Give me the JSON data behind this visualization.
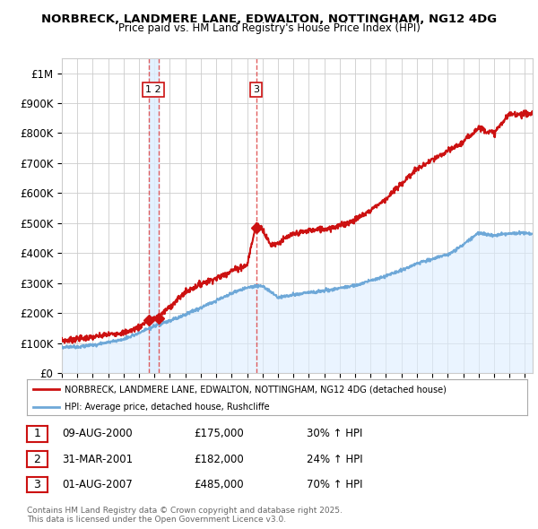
{
  "title": "NORBRECK, LANDMERE LANE, EDWALTON, NOTTINGHAM, NG12 4DG",
  "subtitle": "Price paid vs. HM Land Registry's House Price Index (HPI)",
  "hpi_color": "#6ea8d8",
  "hpi_fill_color": "#ddeeff",
  "price_color": "#cc1111",
  "vline_color": "#dd4444",
  "vline_band_color": "#ddeeff",
  "background_color": "#ffffff",
  "grid_color": "#cccccc",
  "legend_label_price": "NORBRECK, LANDMERE LANE, EDWALTON, NOTTINGHAM, NG12 4DG (detached house)",
  "legend_label_hpi": "HPI: Average price, detached house, Rushcliffe",
  "transactions": [
    {
      "num": 1,
      "date_str": "09-AUG-2000",
      "price": "£175,000",
      "pct": "30% ↑ HPI",
      "year": 2000.61
    },
    {
      "num": 2,
      "date_str": "31-MAR-2001",
      "price": "£182,000",
      "pct": "24% ↑ HPI",
      "year": 2001.25
    },
    {
      "num": 3,
      "date_str": "01-AUG-2007",
      "price": "£485,000",
      "pct": "70% ↑ HPI",
      "year": 2007.58
    }
  ],
  "footer": "Contains HM Land Registry data © Crown copyright and database right 2025.\nThis data is licensed under the Open Government Licence v3.0.",
  "ylim": [
    0,
    1050000
  ],
  "yticks": [
    0,
    100000,
    200000,
    300000,
    400000,
    500000,
    600000,
    700000,
    800000,
    900000,
    1000000
  ],
  "ytick_labels": [
    "£0",
    "£100K",
    "£200K",
    "£300K",
    "£400K",
    "£500K",
    "£600K",
    "£700K",
    "£800K",
    "£900K",
    "£1M"
  ],
  "hpi_keypoints_x": [
    1995,
    1997,
    1999,
    2001,
    2003,
    2005,
    2007,
    2008,
    2009,
    2010,
    2012,
    2014,
    2016,
    2018,
    2020,
    2021,
    2022,
    2023,
    2024,
    2025.5
  ],
  "hpi_keypoints_y": [
    85000,
    95000,
    115000,
    155000,
    195000,
    240000,
    285000,
    290000,
    255000,
    262000,
    275000,
    295000,
    325000,
    360000,
    390000,
    420000,
    460000,
    450000,
    455000,
    455000
  ],
  "price_keypoints_x": [
    1995,
    1997,
    1999,
    2000.0,
    2000.61,
    2001.25,
    2002,
    2003,
    2004,
    2005,
    2006,
    2007.0,
    2007.58,
    2008.0,
    2008.5,
    2009.0,
    2010,
    2011,
    2012,
    2013,
    2014,
    2015,
    2016,
    2017,
    2018,
    2019,
    2020,
    2021,
    2022,
    2023,
    2024,
    2025.5
  ],
  "price_keypoints_y": [
    108000,
    118000,
    135000,
    152000,
    175000,
    182000,
    215000,
    260000,
    290000,
    310000,
    335000,
    350000,
    485000,
    470000,
    415000,
    420000,
    450000,
    465000,
    470000,
    480000,
    500000,
    530000,
    570000,
    620000,
    670000,
    700000,
    730000,
    760000,
    810000,
    790000,
    850000,
    855000
  ],
  "sale_marker_vals": [
    175000,
    182000,
    485000
  ]
}
